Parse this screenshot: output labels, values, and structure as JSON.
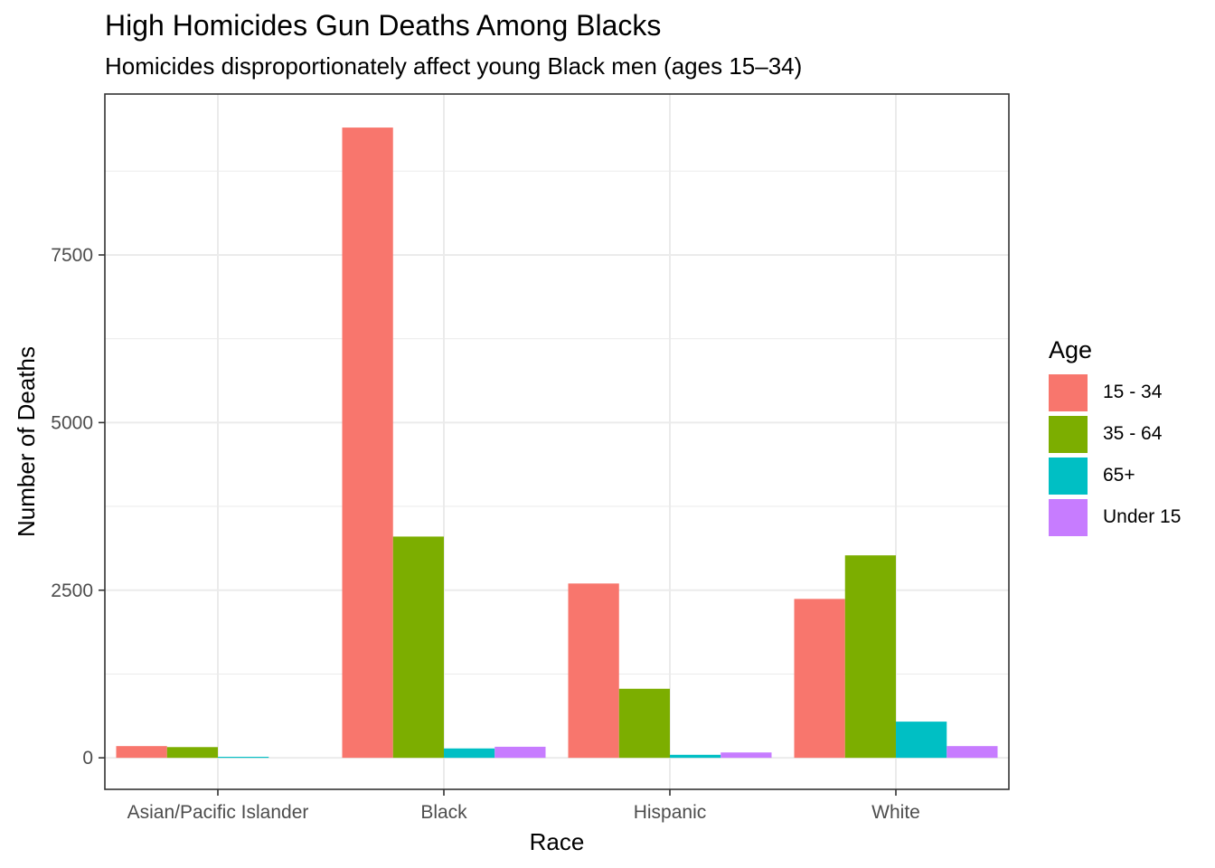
{
  "chart_data": {
    "type": "bar",
    "title": "High Homicides Gun Deaths Among Blacks",
    "subtitle": "Homicides disproportionately affect young Black men (ages 15–34)",
    "xlabel": "Race",
    "ylabel": "Number of Deaths",
    "categories": [
      "Asian/Pacific Islander",
      "Black",
      "Hispanic",
      "White"
    ],
    "legend_title": "Age",
    "legend_position": "right",
    "grid": true,
    "ylim": [
      -470,
      9900
    ],
    "yticks": [
      0,
      2500,
      5000,
      7500
    ],
    "ytick_labels": [
      "0",
      "2500",
      "5000",
      "7500"
    ],
    "series": [
      {
        "name": "15 - 34",
        "color": "#F8766D",
        "values": [
          175,
          9400,
          2600,
          2370
        ]
      },
      {
        "name": "35 - 64",
        "color": "#7CAE00",
        "values": [
          160,
          3300,
          1030,
          3020
        ]
      },
      {
        "name": "65+",
        "color": "#00BFC4",
        "values": [
          15,
          140,
          45,
          540
        ]
      },
      {
        "name": "Under 15",
        "color": "#C77CFF",
        "values": [
          null,
          165,
          80,
          175
        ]
      }
    ]
  }
}
